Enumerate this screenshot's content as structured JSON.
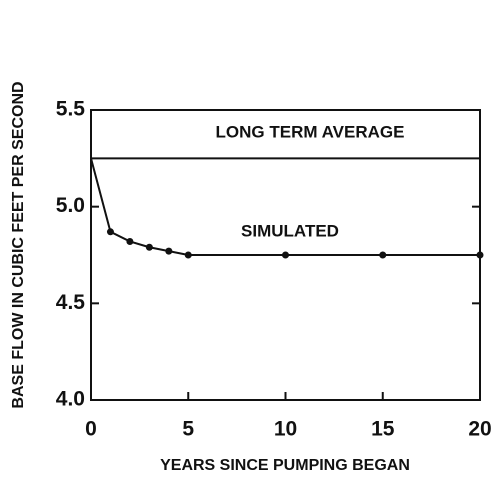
{
  "chart_data": {
    "type": "line",
    "xlabel": "YEARS SINCE PUMPING BEGAN",
    "ylabel": "BASE FLOW IN CUBIC FEET PER SECOND",
    "xlim": [
      0,
      20
    ],
    "xticks": [
      0,
      5,
      10,
      15,
      20
    ],
    "ylim": [
      4,
      5.5
    ],
    "yticks": [
      {
        "value": 4,
        "label": "4.0"
      },
      4.5,
      {
        "value": 5,
        "label": "5.0"
      },
      5.5
    ],
    "grid": false,
    "series": [
      {
        "name": "LONG TERM AVERAGE",
        "color": "#111111",
        "x": [
          0,
          20
        ],
        "values": [
          5.25,
          5.25
        ],
        "markers": false
      },
      {
        "name": "SIMULATED",
        "color": "#111111",
        "x": [
          0,
          1,
          2,
          3,
          4,
          5,
          10,
          15,
          20
        ],
        "values": [
          5.25,
          4.87,
          4.82,
          4.79,
          4.77,
          4.75,
          4.75,
          4.75,
          4.75
        ],
        "markers": true
      }
    ]
  }
}
